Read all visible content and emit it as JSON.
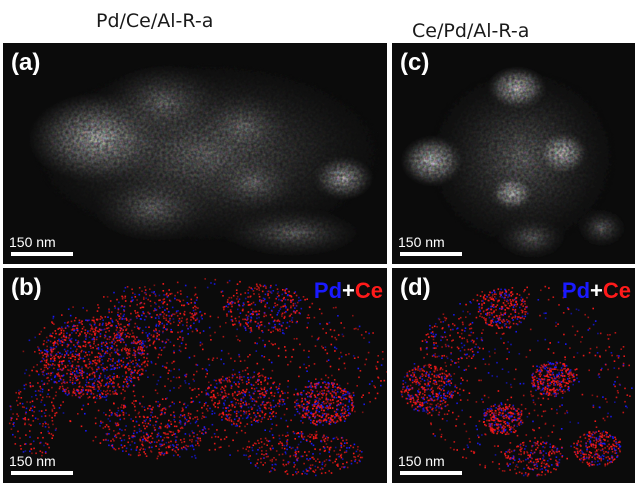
{
  "titles": {
    "left": "Pd/Ce/Al-R-a",
    "right": "Ce/Pd/Al-R-a"
  },
  "panels": {
    "a": {
      "label": "(a)",
      "scale": "150 nm"
    },
    "b": {
      "label": "(b)",
      "scale": "150 nm",
      "legend_pd": "Pd",
      "legend_plus": "+",
      "legend_ce": "Ce"
    },
    "c": {
      "label": "(c)",
      "scale": "150 nm"
    },
    "d": {
      "label": "(d)",
      "scale": "150 nm",
      "legend_pd": "Pd",
      "legend_plus": "+",
      "legend_ce": "Ce"
    }
  },
  "colors": {
    "pd": "#1a1aff",
    "plus": "#ffffff",
    "ce": "#ff1a1a",
    "background": "#0b0b0b"
  }
}
